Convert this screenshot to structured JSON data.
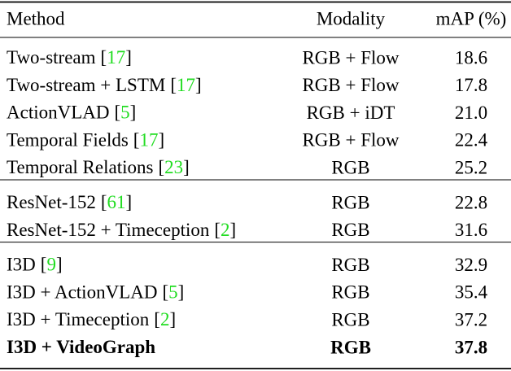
{
  "table": {
    "header": [
      "Method",
      "Modality",
      "mAP (%)"
    ],
    "groups": [
      [
        {
          "method": "Two-stream",
          "cite": [
            "[",
            "17",
            "]"
          ],
          "modality": "RGB + Flow",
          "map": "18.6"
        },
        {
          "method": "Two-stream + LSTM",
          "cite": [
            "[",
            "17",
            "]"
          ],
          "modality": "RGB + Flow",
          "map": "17.8"
        },
        {
          "method": "ActionVLAD",
          "cite": [
            "[",
            "5",
            "]"
          ],
          "modality": "RGB + iDT",
          "map": "21.0"
        },
        {
          "method": "Temporal Fields",
          "cite": [
            "[",
            "17",
            "]"
          ],
          "modality": "RGB + Flow",
          "map": "22.4"
        },
        {
          "method": "Temporal Relations",
          "cite": [
            "[",
            "23",
            "]"
          ],
          "modality": "RGB",
          "map": "25.2"
        }
      ],
      [
        {
          "method": "ResNet-152",
          "cite": [
            "[",
            "61",
            "]"
          ],
          "modality": "RGB",
          "map": "22.8"
        },
        {
          "method": "ResNet-152 + Timeception",
          "cite": [
            "[",
            "2",
            "]"
          ],
          "modality": "RGB",
          "map": "31.6"
        }
      ],
      [
        {
          "method": "I3D",
          "cite": [
            "[",
            "9",
            "]"
          ],
          "modality": "RGB",
          "map": "32.9"
        },
        {
          "method": "I3D + ActionVLAD",
          "cite": [
            "[",
            "5",
            "]"
          ],
          "modality": "RGB",
          "map": "35.4"
        },
        {
          "method": "I3D + Timeception",
          "cite": [
            "[",
            "2",
            "]"
          ],
          "modality": "RGB",
          "map": "37.2"
        },
        {
          "method": "I3D + VideoGraph",
          "modality": "RGB",
          "map": "37.8",
          "bold": true
        }
      ]
    ],
    "cite_color": "#22dd22"
  }
}
